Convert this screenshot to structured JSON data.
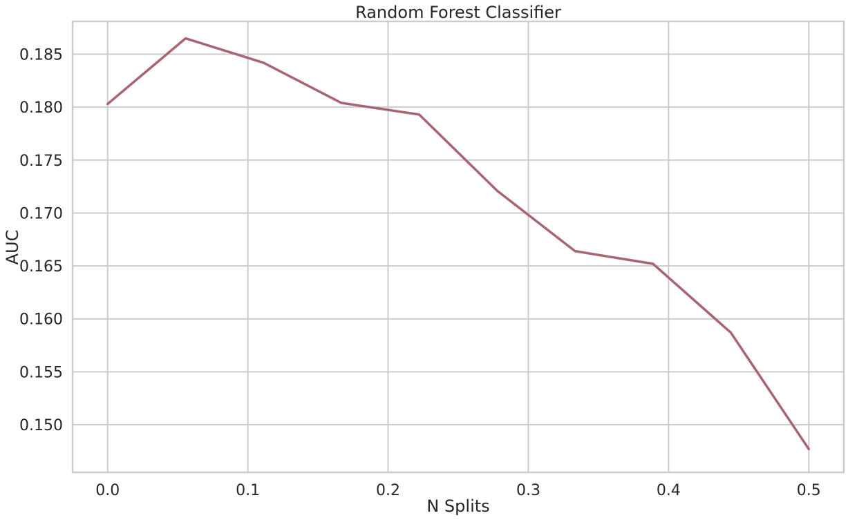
{
  "chart_data": {
    "type": "line",
    "title": "Random Forest Classifier",
    "xlabel": "N Splits",
    "ylabel": "AUC",
    "xlim": [
      -0.025,
      0.525
    ],
    "ylim": [
      0.1455,
      0.1881
    ],
    "x_ticks": [
      0.0,
      0.1,
      0.2,
      0.3,
      0.4,
      0.5
    ],
    "x_tick_labels": [
      "0.0",
      "0.1",
      "0.2",
      "0.3",
      "0.4",
      "0.5"
    ],
    "y_ticks": [
      0.15,
      0.155,
      0.16,
      0.165,
      0.17,
      0.175,
      0.18,
      0.185
    ],
    "y_tick_labels": [
      "0.150",
      "0.155",
      "0.160",
      "0.165",
      "0.170",
      "0.175",
      "0.180",
      "0.185"
    ],
    "grid": true,
    "series": [
      {
        "color": "#a8646f",
        "x": [
          0.0,
          0.0556,
          0.1111,
          0.1667,
          0.2222,
          0.2778,
          0.3333,
          0.3889,
          0.4444,
          0.5
        ],
        "y": [
          0.1803,
          0.1865,
          0.1842,
          0.1804,
          0.1793,
          0.1721,
          0.1664,
          0.1652,
          0.1587,
          0.1477
        ]
      }
    ]
  }
}
